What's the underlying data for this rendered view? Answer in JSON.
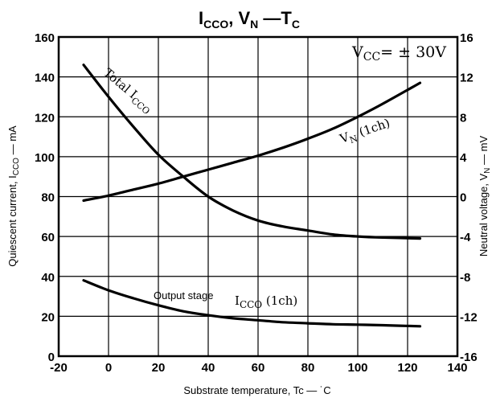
{
  "chart_data": {
    "type": "line",
    "title": "I CCO, V N — T C",
    "title_parts": {
      "i": "I",
      "i_sub": "CCO",
      "sep": ", ",
      "v": "V",
      "v_sub": "N",
      "dash": " —",
      "t": "T",
      "t_sub": "C"
    },
    "xlabel": "Substrate temperature, Tc — ˙C",
    "ylabel": "Quiescent current, I CCO — mA",
    "ylabel_parts": {
      "a": "Quiescent current, I",
      "sub": "CCO",
      "b": " — mA"
    },
    "y2label": "Neutral voltage, V N — mV",
    "y2label_parts": {
      "a": "Neutral voltage, V",
      "sub": "N",
      "b": " — mV"
    },
    "xlim": [
      -20,
      140
    ],
    "ylim": [
      0,
      160
    ],
    "y2lim": [
      -16,
      16
    ],
    "xticks": [
      "-20",
      "0",
      "20",
      "40",
      "60",
      "80",
      "100",
      "120",
      "140"
    ],
    "yticks": [
      "0",
      "20",
      "40",
      "60",
      "80",
      "100",
      "120",
      "140",
      "160"
    ],
    "y2ticks": [
      "-16",
      "-12",
      "-8",
      "-4",
      "0",
      "4",
      "8",
      "12",
      "16"
    ],
    "grid": true,
    "series": [
      {
        "axis": "left",
        "x": [
          -10,
          0,
          10,
          20,
          30,
          40,
          50,
          60,
          70,
          80,
          90,
          100,
          110,
          125
        ],
        "y": [
          146,
          130,
          115,
          101,
          90,
          80,
          73,
          68,
          65,
          63,
          61,
          60,
          59.5,
          59
        ]
      },
      {
        "axis": "right",
        "x": [
          -10,
          0,
          10,
          20,
          30,
          40,
          50,
          60,
          70,
          80,
          90,
          100,
          110,
          125
        ],
        "y": [
          -0.4,
          0.1,
          0.7,
          1.3,
          2.0,
          2.7,
          3.4,
          4.1,
          4.9,
          5.8,
          6.8,
          8.0,
          9.3,
          11.4
        ]
      },
      {
        "axis": "left",
        "x": [
          -10,
          0,
          10,
          20,
          30,
          40,
          50,
          60,
          70,
          80,
          90,
          100,
          110,
          125
        ],
        "y": [
          38,
          33,
          29,
          25.5,
          22.5,
          20.5,
          19,
          18,
          17,
          16.5,
          16,
          15.8,
          15.5,
          15
        ]
      }
    ],
    "annotations": {
      "vcc": {
        "main": "V",
        "sub": "CC",
        "rest": "= ± 30V"
      },
      "total": {
        "main": "Total I",
        "sub": "CCO"
      },
      "vn": {
        "main": "V",
        "sub": "N",
        "rest": " (1ch)"
      },
      "output": {
        "lead": "Output stage",
        "main": "I",
        "sub": "CCO",
        "rest": " (1ch)"
      }
    }
  }
}
